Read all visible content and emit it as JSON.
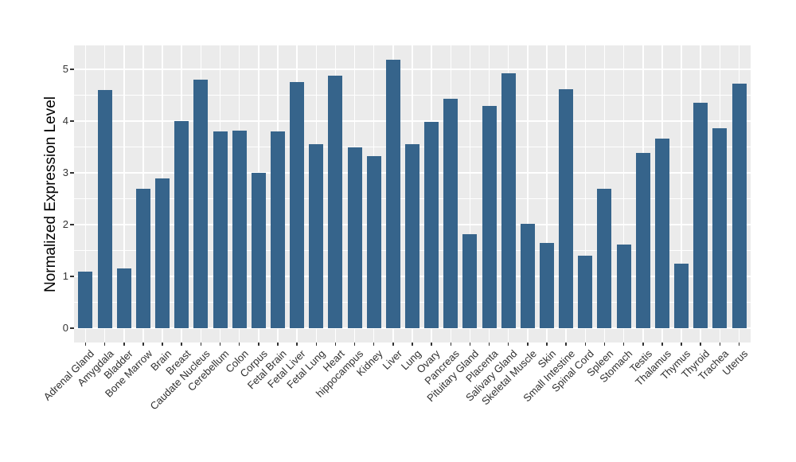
{
  "chart_data": {
    "type": "bar",
    "title": "",
    "xlabel": "",
    "ylabel": "Normalized Expression Level",
    "categories": [
      "Adrenal Gland",
      "Amygdala",
      "Bladder",
      "Bone Marrow",
      "Brain",
      "Breast",
      "Caudate Nucleus",
      "Cerebellum",
      "Colon",
      "Corpus",
      "Fetal Brain",
      "Fetal Liver",
      "Fetal Lung",
      "Heart",
      "hippocampus",
      "Kidney",
      "Liver",
      "Lung",
      "Ovary",
      "Pancreas",
      "Pituitary Gland",
      "Placenta",
      "Salivary Gland",
      "Skeletal Muscle",
      "Skin",
      "Small Intestine",
      "Spinal Cord",
      "Spleen",
      "Stomach",
      "Testis",
      "Thalamus",
      "Thymus",
      "Thyroid",
      "Trachea",
      "Uterus"
    ],
    "values": [
      1.1,
      4.6,
      1.15,
      2.7,
      2.9,
      4.0,
      4.8,
      3.8,
      3.82,
      3.0,
      3.8,
      4.75,
      3.55,
      4.88,
      3.49,
      3.32,
      5.18,
      3.55,
      3.98,
      4.43,
      1.82,
      4.29,
      4.93,
      2.01,
      1.65,
      4.61,
      1.4,
      2.7,
      1.62,
      3.38,
      3.66,
      1.25,
      4.35,
      3.86,
      4.72
    ],
    "ylim": [
      -0.28,
      5.46
    ],
    "yticks": [
      0,
      1,
      2,
      3,
      4,
      5
    ],
    "yticks_minor": [
      0.5,
      1.5,
      2.5,
      3.5,
      4.5
    ],
    "grid": "horizontal major+minor and vertical major gridlines, white on gray panel",
    "legend": "none",
    "bar_color": "#36648B",
    "panel_bg": "#EBEBEB",
    "grid_color": "#FFFFFF",
    "tick_color": "#333333",
    "axis_text_color": "#303030",
    "axis_title_color": "#000000"
  }
}
